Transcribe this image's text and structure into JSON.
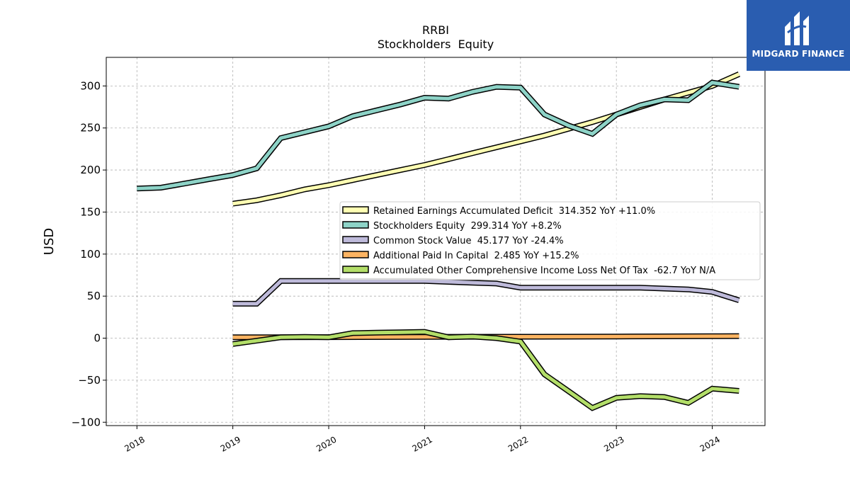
{
  "brand": {
    "name": "MIDGARD FINANCE",
    "bg_color": "#2a5db0"
  },
  "chart_data": {
    "type": "line",
    "title": "RRBI",
    "subtitle": "Stockholders  Equity",
    "xlabel": "",
    "ylabel": "USD",
    "xlim": [
      2017.68,
      2024.55
    ],
    "ylim": [
      -104,
      334
    ],
    "yticks": [
      -100,
      -50,
      0,
      50,
      100,
      150,
      200,
      250,
      300
    ],
    "ytick_labels": [
      "−100",
      "−50",
      "0",
      "50",
      "100",
      "150",
      "200",
      "250",
      "300"
    ],
    "xticks": [
      2018,
      2019,
      2020,
      2021,
      2022,
      2023,
      2024
    ],
    "xtick_labels": [
      "2018",
      "2019",
      "2020",
      "2021",
      "2022",
      "2023",
      "2024"
    ],
    "grid": true,
    "legend_position": "center-right",
    "series": [
      {
        "name": "Retained Earnings Accumulated Deficit  314.352 YoY +11.0%",
        "color": "#ffffb3",
        "x": [
          2019.0,
          2019.25,
          2019.5,
          2019.75,
          2020.0,
          2020.25,
          2020.5,
          2020.75,
          2021.0,
          2021.25,
          2021.5,
          2021.75,
          2022.0,
          2022.25,
          2022.5,
          2022.75,
          2023.0,
          2023.25,
          2023.5,
          2023.75,
          2024.0,
          2024.28
        ],
        "y": [
          160,
          164,
          170,
          177,
          182,
          188,
          194,
          200,
          206,
          213,
          220,
          227,
          234,
          241,
          249,
          257,
          266,
          275,
          284,
          292,
          300,
          314
        ]
      },
      {
        "name": "Stockholders Equity  299.314 YoY +8.2%",
        "color": "#8dd3c7",
        "x": [
          2018.0,
          2018.25,
          2018.5,
          2018.75,
          2019.0,
          2019.25,
          2019.5,
          2019.75,
          2020.0,
          2020.25,
          2020.5,
          2020.75,
          2021.0,
          2021.25,
          2021.5,
          2021.75,
          2022.0,
          2022.25,
          2022.5,
          2022.75,
          2023.0,
          2023.25,
          2023.5,
          2023.75,
          2024.0,
          2024.28
        ],
        "y": [
          178,
          179,
          184,
          189,
          194,
          202,
          238,
          245,
          252,
          264,
          271,
          278,
          286,
          285,
          293,
          299,
          298,
          266,
          253,
          243,
          266,
          277,
          284,
          283,
          304,
          299
        ]
      },
      {
        "name": "Common Stock Value  45.177 YoY -24.4%",
        "color": "#bebada",
        "x": [
          2019.0,
          2019.25,
          2019.5,
          2019.75,
          2020.0,
          2020.25,
          2020.5,
          2020.75,
          2021.0,
          2021.25,
          2021.5,
          2021.75,
          2022.0,
          2022.25,
          2022.5,
          2022.75,
          2023.0,
          2023.25,
          2023.5,
          2023.75,
          2024.0,
          2024.28
        ],
        "y": [
          41,
          41,
          68,
          68,
          68,
          68,
          68,
          68,
          68,
          67,
          66,
          65,
          60,
          60,
          60,
          60,
          60,
          60,
          59,
          58,
          55,
          45
        ]
      },
      {
        "name": "Additional Paid In Capital  2.485 YoY +15.2%",
        "color": "#fdb462",
        "x": [
          2019.0,
          2020.0,
          2021.0,
          2022.0,
          2023.0,
          2024.0,
          2024.28
        ],
        "y": [
          1,
          1.2,
          1.5,
          1.7,
          2.0,
          2.3,
          2.5
        ]
      },
      {
        "name": "Accumulated Other Comprehensive Income Loss Net Of Tax  -62.7 YoY N/A",
        "color": "#b3de69",
        "x": [
          2019.0,
          2019.25,
          2019.5,
          2019.75,
          2020.0,
          2020.25,
          2020.5,
          2020.75,
          2021.0,
          2021.25,
          2021.5,
          2021.75,
          2022.0,
          2022.25,
          2022.5,
          2022.75,
          2023.0,
          2023.25,
          2023.5,
          2023.75,
          2024.0,
          2024.28
        ],
        "y": [
          -7,
          -3,
          1,
          1.5,
          1,
          6,
          6.5,
          7,
          7.5,
          1,
          2,
          0,
          -4,
          -43,
          -63,
          -83,
          -71,
          -69,
          -70,
          -77,
          -60,
          -62.7
        ]
      }
    ]
  }
}
